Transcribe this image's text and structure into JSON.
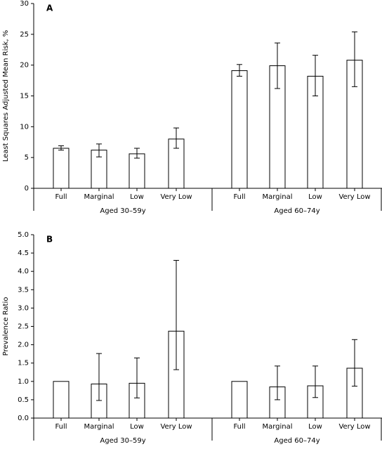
{
  "chart_data": [
    {
      "type": "bar",
      "panel_label": "A",
      "ylabel": "Least Squares Adjusted Mean Risk, %",
      "ylim": [
        0,
        30
      ],
      "yticks": [
        "0",
        "5",
        "10",
        "15",
        "20",
        "25",
        "30"
      ],
      "groups": [
        {
          "name": "Aged 30–59y",
          "categories": [
            "Full",
            "Marginal",
            "Low",
            "Very Low"
          ],
          "values": [
            6.5,
            6.2,
            5.6,
            8.0
          ],
          "err_low": [
            6.2,
            5.1,
            4.9,
            6.5
          ],
          "err_high": [
            6.9,
            7.2,
            6.5,
            9.8
          ]
        },
        {
          "name": "Aged 60–74y",
          "categories": [
            "Full",
            "Marginal",
            "Low",
            "Very Low"
          ],
          "values": [
            19.1,
            19.9,
            18.2,
            20.8
          ],
          "err_low": [
            18.2,
            16.2,
            15.0,
            16.5
          ],
          "err_high": [
            20.1,
            23.6,
            21.6,
            25.4
          ]
        }
      ]
    },
    {
      "type": "bar",
      "panel_label": "B",
      "ylabel": "Prevalence Ratio",
      "ylim": [
        0,
        5.0
      ],
      "yticks": [
        "0.0",
        "0.5",
        "1.0",
        "1.5",
        "2.0",
        "2.5",
        "3.0",
        "3.5",
        "4.0",
        "4.5",
        "5.0"
      ],
      "groups": [
        {
          "name": "Aged 30–59y",
          "categories": [
            "Full",
            "Marginal",
            "Low",
            "Very Low"
          ],
          "values": [
            1.0,
            0.93,
            0.95,
            2.37
          ],
          "err_low": [
            null,
            0.48,
            0.55,
            1.32
          ],
          "err_high": [
            null,
            1.76,
            1.64,
            4.3
          ]
        },
        {
          "name": "Aged 60–74y",
          "categories": [
            "Full",
            "Marginal",
            "Low",
            "Very Low"
          ],
          "values": [
            1.0,
            0.85,
            0.88,
            1.36
          ],
          "err_low": [
            null,
            0.5,
            0.56,
            0.87
          ],
          "err_high": [
            null,
            1.42,
            1.42,
            2.14
          ]
        }
      ]
    }
  ]
}
